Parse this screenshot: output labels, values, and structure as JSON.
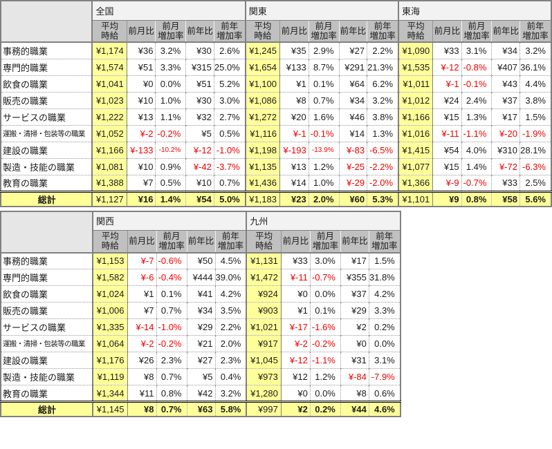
{
  "colors": {
    "highlight_yellow": "#ffff99",
    "column_header_gray": "#c0c0c0",
    "region_header_gray": "#f2f2f2",
    "corner_gray": "#e6e6e6",
    "border_gray": "#808080",
    "negative_red": "#f00000"
  },
  "chart_data": {
    "type": "table",
    "description": "平均時給 regional comparison tables",
    "metric_columns": [
      "平均時給",
      "前月比",
      "前月増加率",
      "前年比",
      "前年増加率"
    ],
    "metric_columns_display": [
      "平均\n時給",
      "前月比",
      "前月\n増加率",
      "前年比",
      "前年\n増加率"
    ],
    "occupations": [
      "事務的職業",
      "専門的職業",
      "飲食の職業",
      "販売の職業",
      "サービスの職業",
      "運搬・清掃・包装等の職業",
      "建設の職業",
      "製造・技能の職業",
      "教育の職業"
    ],
    "total_label": "総計",
    "tables": [
      {
        "regions": [
          {
            "name": "全国",
            "rows": [
              [
                "¥1,174",
                "¥36",
                "3.2%",
                "¥30",
                "2.6%"
              ],
              [
                "¥1,574",
                "¥51",
                "3.3%",
                "¥315",
                "25.0%"
              ],
              [
                "¥1,041",
                "¥0",
                "0.0%",
                "¥51",
                "5.2%"
              ],
              [
                "¥1,023",
                "¥10",
                "1.0%",
                "¥30",
                "3.0%"
              ],
              [
                "¥1,222",
                "¥13",
                "1.1%",
                "¥32",
                "2.7%"
              ],
              [
                "¥1,052",
                "¥-2",
                "-0.2%",
                "¥5",
                "0.5%"
              ],
              [
                "¥1,166",
                "¥-133",
                "-10.2%",
                "¥-12",
                "-1.0%"
              ],
              [
                "¥1,081",
                "¥10",
                "0.9%",
                "¥-42",
                "-3.7%"
              ],
              [
                "¥1,388",
                "¥7",
                "0.5%",
                "¥10",
                "0.7%"
              ]
            ],
            "total": [
              "¥1,127",
              "¥16",
              "1.4%",
              "¥54",
              "5.0%"
            ]
          },
          {
            "name": "関東",
            "rows": [
              [
                "¥1,245",
                "¥35",
                "2.9%",
                "¥27",
                "2.2%"
              ],
              [
                "¥1,654",
                "¥133",
                "8.7%",
                "¥291",
                "21.3%"
              ],
              [
                "¥1,100",
                "¥1",
                "0.1%",
                "¥64",
                "6.2%"
              ],
              [
                "¥1,086",
                "¥8",
                "0.7%",
                "¥34",
                "3.2%"
              ],
              [
                "¥1,272",
                "¥20",
                "1.6%",
                "¥46",
                "3.8%"
              ],
              [
                "¥1,116",
                "¥-1",
                "-0.1%",
                "¥14",
                "1.3%"
              ],
              [
                "¥1,198",
                "¥-193",
                "-13.9%",
                "¥-83",
                "-6.5%"
              ],
              [
                "¥1,135",
                "¥13",
                "1.2%",
                "¥-25",
                "-2.2%"
              ],
              [
                "¥1,436",
                "¥14",
                "1.0%",
                "¥-29",
                "-2.0%"
              ]
            ],
            "total": [
              "¥1,183",
              "¥23",
              "2.0%",
              "¥60",
              "5.3%"
            ]
          },
          {
            "name": "東海",
            "rows": [
              [
                "¥1,090",
                "¥33",
                "3.1%",
                "¥34",
                "3.2%"
              ],
              [
                "¥1,535",
                "¥-12",
                "-0.8%",
                "¥407",
                "36.1%"
              ],
              [
                "¥1,011",
                "¥-1",
                "-0.1%",
                "¥43",
                "4.4%"
              ],
              [
                "¥1,012",
                "¥24",
                "2.4%",
                "¥37",
                "3.8%"
              ],
              [
                "¥1,166",
                "¥15",
                "1.3%",
                "¥17",
                "1.5%"
              ],
              [
                "¥1,016",
                "¥-11",
                "-1.1%",
                "¥-20",
                "-1.9%"
              ],
              [
                "¥1,415",
                "¥54",
                "4.0%",
                "¥310",
                "28.1%"
              ],
              [
                "¥1,077",
                "¥15",
                "1.4%",
                "¥-72",
                "-6.3%"
              ],
              [
                "¥1,366",
                "¥-9",
                "-0.7%",
                "¥33",
                "2.5%"
              ]
            ],
            "total": [
              "¥1,101",
              "¥9",
              "0.8%",
              "¥58",
              "5.6%"
            ]
          }
        ]
      },
      {
        "regions": [
          {
            "name": "関西",
            "rows": [
              [
                "¥1,153",
                "¥-7",
                "-0.6%",
                "¥50",
                "4.5%"
              ],
              [
                "¥1,582",
                "¥-6",
                "-0.4%",
                "¥444",
                "39.0%"
              ],
              [
                "¥1,024",
                "¥1",
                "0.1%",
                "¥41",
                "4.2%"
              ],
              [
                "¥1,006",
                "¥7",
                "0.7%",
                "¥34",
                "3.5%"
              ],
              [
                "¥1,335",
                "¥-14",
                "-1.0%",
                "¥29",
                "2.2%"
              ],
              [
                "¥1,064",
                "¥-2",
                "-0.2%",
                "¥21",
                "2.0%"
              ],
              [
                "¥1,176",
                "¥26",
                "2.3%",
                "¥27",
                "2.3%"
              ],
              [
                "¥1,119",
                "¥8",
                "0.7%",
                "¥5",
                "0.4%"
              ],
              [
                "¥1,344",
                "¥11",
                "0.8%",
                "¥42",
                "3.2%"
              ]
            ],
            "total": [
              "¥1,145",
              "¥8",
              "0.7%",
              "¥63",
              "5.8%"
            ]
          },
          {
            "name": "九州",
            "rows": [
              [
                "¥1,131",
                "¥33",
                "3.0%",
                "¥17",
                "1.5%"
              ],
              [
                "¥1,472",
                "¥-11",
                "-0.7%",
                "¥355",
                "31.8%"
              ],
              [
                "¥924",
                "¥0",
                "0.0%",
                "¥37",
                "4.2%"
              ],
              [
                "¥903",
                "¥1",
                "0.1%",
                "¥29",
                "3.3%"
              ],
              [
                "¥1,021",
                "¥-17",
                "-1.6%",
                "¥2",
                "0.2%"
              ],
              [
                "¥917",
                "¥-2",
                "-0.2%",
                "¥0",
                "0.0%"
              ],
              [
                "¥1,045",
                "¥-12",
                "-1.1%",
                "¥31",
                "3.1%"
              ],
              [
                "¥973",
                "¥12",
                "1.2%",
                "¥-84",
                "-7.9%"
              ],
              [
                "¥1,280",
                "¥0",
                "0.0%",
                "¥8",
                "0.6%"
              ]
            ],
            "total": [
              "¥997",
              "¥2",
              "0.2%",
              "¥44",
              "4.6%"
            ]
          }
        ]
      }
    ]
  }
}
